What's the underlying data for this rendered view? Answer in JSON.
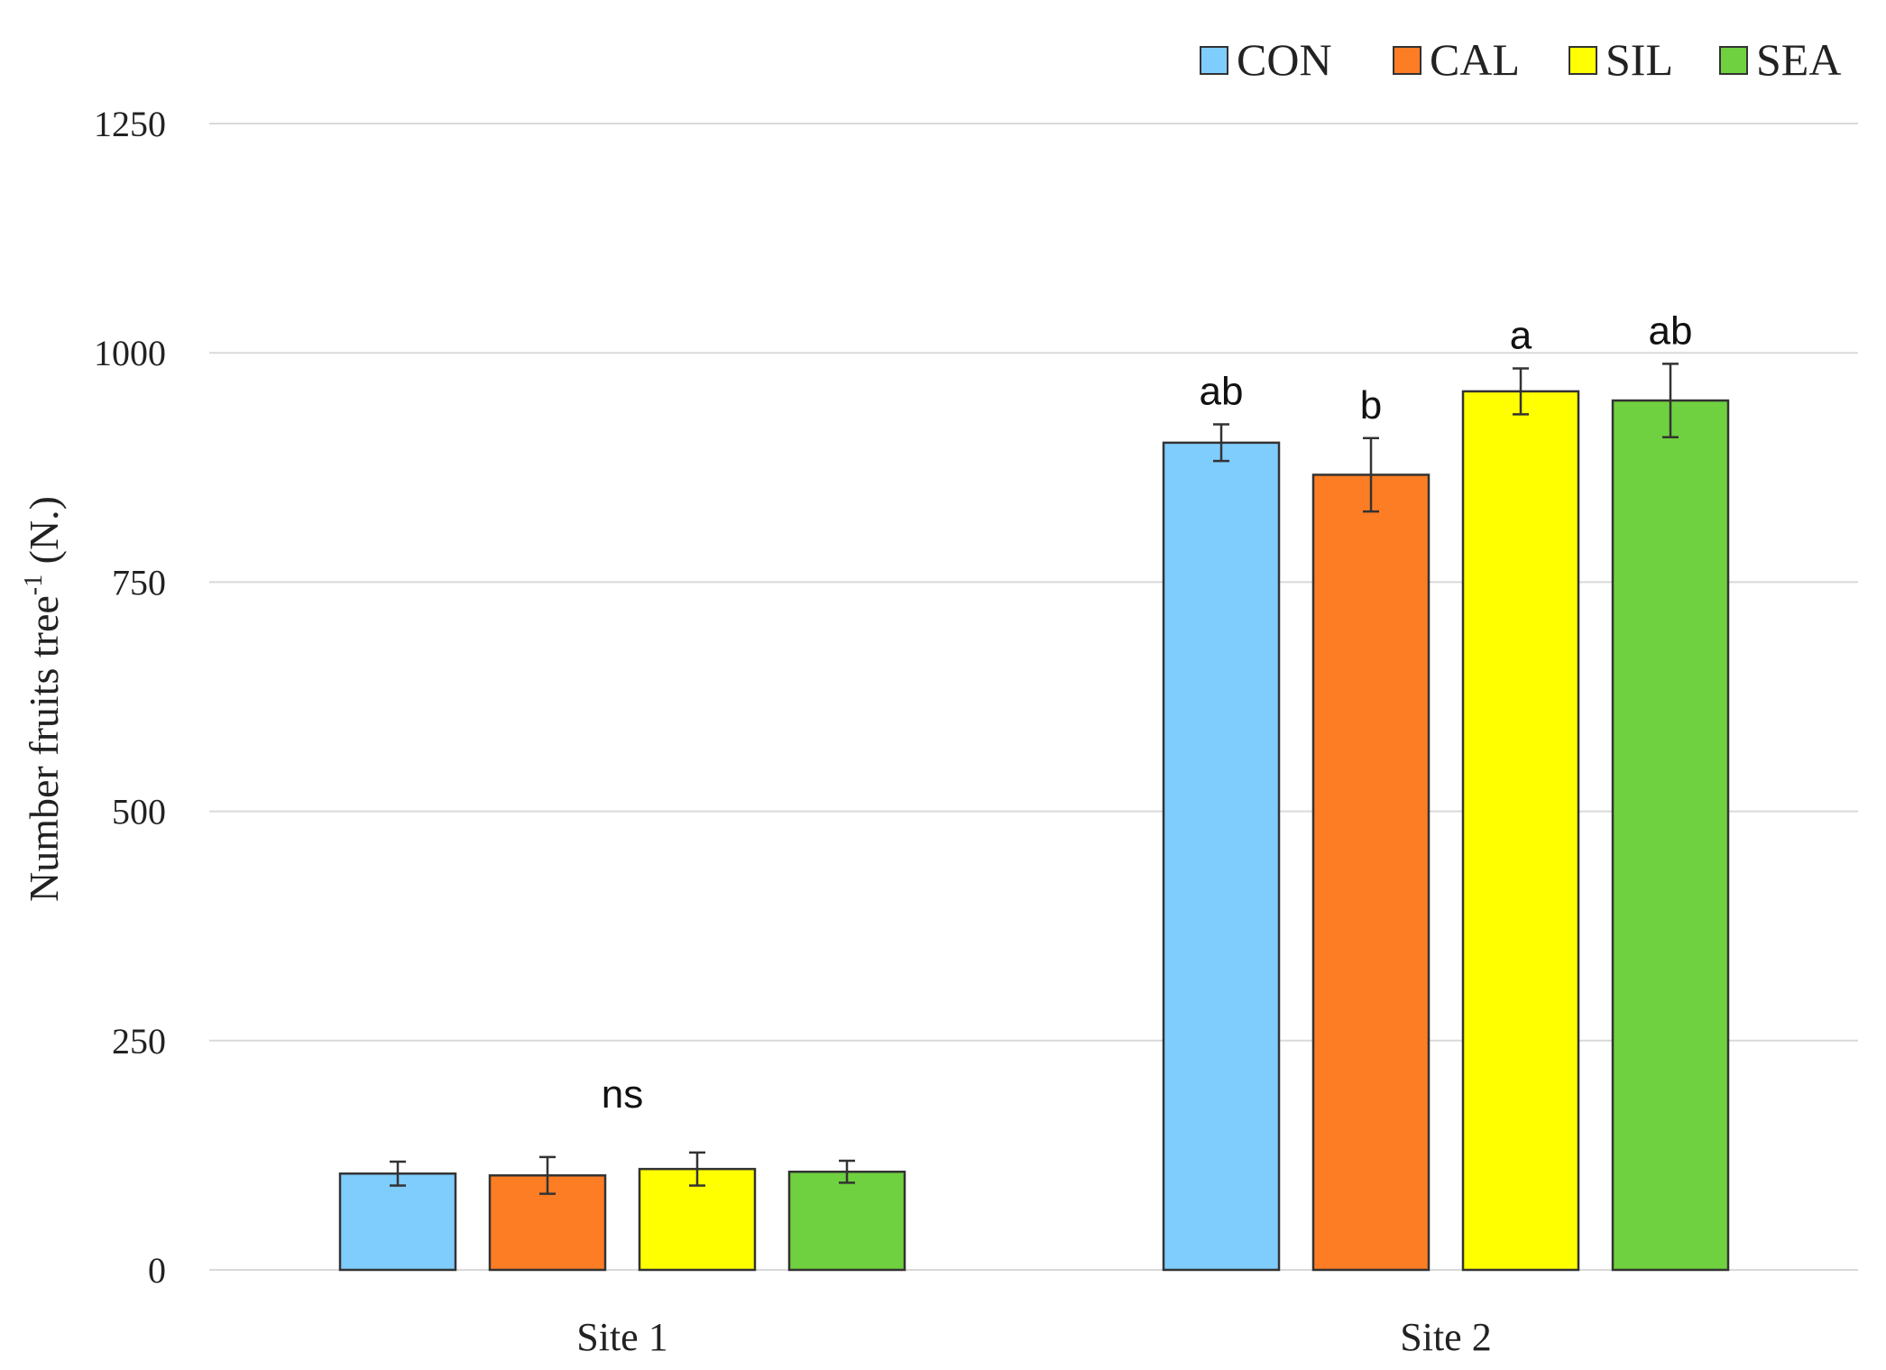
{
  "chart_data": {
    "type": "bar",
    "title": "",
    "xlabel": "",
    "ylabel_main": "Number fruits tree",
    "ylabel_sup": "-1",
    "ylabel_tail": " (N.)",
    "ylim": [
      0,
      1250
    ],
    "yticks": [
      "0",
      "250",
      "500",
      "750",
      "1000",
      "1250"
    ],
    "yticks_values": [
      0,
      250,
      500,
      750,
      1000,
      1250
    ],
    "grid": true,
    "legend_position": "top-right",
    "categories": [
      "Site 1",
      "Site 2"
    ],
    "series": [
      {
        "name": "CON",
        "color": "#7fcdfd",
        "values": [
          105,
          902
        ],
        "errors": [
          13,
          20
        ]
      },
      {
        "name": "CAL",
        "color": "#fd7d24",
        "values": [
          103,
          867
        ],
        "errors": [
          20,
          40
        ]
      },
      {
        "name": "SIL",
        "color": "#ffff00",
        "values": [
          110,
          958
        ],
        "errors": [
          18,
          25
        ]
      },
      {
        "name": "SEA",
        "color": "#6fd13f",
        "values": [
          107,
          948
        ],
        "errors": [
          12,
          40
        ]
      }
    ],
    "annotations": [
      {
        "category": 0,
        "series": null,
        "text": "ns"
      },
      {
        "category": 1,
        "series": 0,
        "text": "ab"
      },
      {
        "category": 1,
        "series": 1,
        "text": "b"
      },
      {
        "category": 1,
        "series": 2,
        "text": "a"
      },
      {
        "category": 1,
        "series": 3,
        "text": "ab"
      }
    ]
  }
}
